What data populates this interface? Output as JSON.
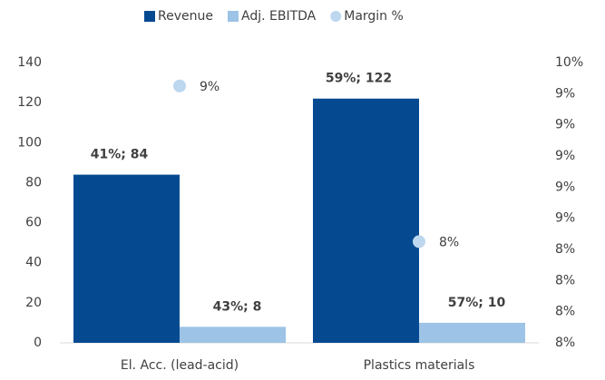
{
  "chart_data": {
    "type": "bar",
    "categories": [
      "El. Acc. (lead-acid)",
      "Plastics materials"
    ],
    "series": [
      {
        "name": "Revenue",
        "color": "#054a91",
        "values": [
          84,
          122
        ],
        "value_labels": [
          "41%; 84",
          "59%; 122"
        ]
      },
      {
        "name": "Adj. EBITDA",
        "color": "#9dc3e6",
        "values": [
          8,
          10
        ],
        "value_labels": [
          "43%; 8",
          "57%; 10"
        ]
      },
      {
        "name": "Margin %",
        "type": "scatter",
        "axis": "y2",
        "color": "#bdd7ee",
        "values": [
          9.45,
          8.45
        ],
        "value_labels": [
          "9%",
          "8%"
        ]
      }
    ],
    "ylim": [
      0,
      140
    ],
    "yticks": [
      0,
      20,
      40,
      60,
      80,
      100,
      120,
      140
    ],
    "y2lim": [
      7.8,
      9.6
    ],
    "y2ticks": [
      {
        "value": 7.8,
        "label": "8%"
      },
      {
        "value": 8.0,
        "label": "8%"
      },
      {
        "value": 8.2,
        "label": "8%"
      },
      {
        "value": 8.4,
        "label": "8%"
      },
      {
        "value": 8.6,
        "label": "9%"
      },
      {
        "value": 8.8,
        "label": "9%"
      },
      {
        "value": 9.0,
        "label": "9%"
      },
      {
        "value": 9.2,
        "label": "9%"
      },
      {
        "value": 9.4,
        "label": "9%"
      },
      {
        "value": 9.6,
        "label": "10%"
      }
    ],
    "legend": "top"
  }
}
